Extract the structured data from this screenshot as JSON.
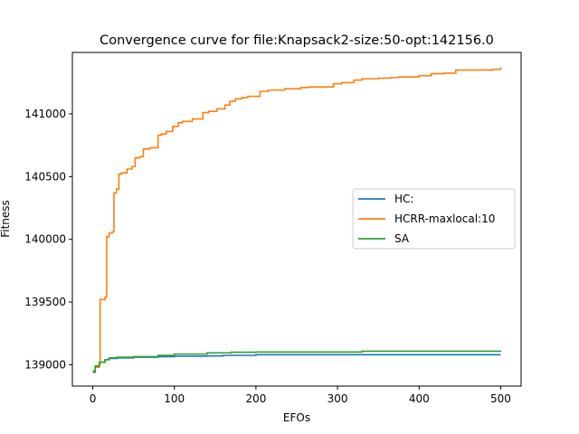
{
  "chart_data": {
    "type": "line",
    "title": "Convergence curve for file:Knapsack2-size:50-opt:142156.0",
    "xlabel": "EFOs",
    "ylabel": "Fitness",
    "xlim": [
      -25,
      525
    ],
    "ylim": [
      138830,
      141490
    ],
    "xticks": [
      0,
      100,
      200,
      300,
      400,
      500
    ],
    "yticks": [
      139000,
      139500,
      140000,
      140500,
      141000
    ],
    "grid": false,
    "legend_position": "center-right",
    "series": [
      {
        "name": "HC:",
        "color": "#1f77b4",
        "x": [
          0,
          3,
          8,
          15,
          20,
          30,
          50,
          80,
          100,
          140,
          160,
          200,
          300,
          500
        ],
        "y": [
          138940,
          138990,
          139020,
          139040,
          139050,
          139055,
          139060,
          139065,
          139068,
          139070,
          139075,
          139080,
          139080,
          139080
        ]
      },
      {
        "name": "HCRR-maxlocal:10",
        "color": "#ff7f0e",
        "x": [
          0,
          3,
          8,
          9,
          15,
          17,
          20,
          24,
          26,
          29,
          32,
          35,
          42,
          48,
          52,
          58,
          62,
          70,
          80,
          84,
          90,
          98,
          105,
          110,
          122,
          135,
          142,
          152,
          162,
          168,
          175,
          183,
          190,
          205,
          215,
          235,
          255,
          265,
          295,
          305,
          320,
          330,
          350,
          365,
          375,
          400,
          415,
          430,
          445,
          490,
          500
        ],
        "y": [
          138950,
          138980,
          139000,
          139520,
          139540,
          140020,
          140050,
          140060,
          140370,
          140400,
          140520,
          140530,
          140560,
          140580,
          140650,
          140660,
          140720,
          140730,
          140830,
          140840,
          140860,
          140900,
          140930,
          140940,
          140960,
          141010,
          141020,
          141040,
          141070,
          141100,
          141120,
          141130,
          141140,
          141180,
          141190,
          141200,
          141210,
          141215,
          141240,
          141250,
          141270,
          141280,
          141285,
          141290,
          141295,
          141305,
          141320,
          141325,
          141350,
          141355,
          141370
        ]
      },
      {
        "name": "SA",
        "color": "#2ca02c",
        "x": [
          0,
          3,
          8,
          15,
          20,
          30,
          50,
          80,
          100,
          140,
          170,
          200,
          330,
          500
        ],
        "y": [
          138950,
          138990,
          139020,
          139040,
          139055,
          139060,
          139065,
          139075,
          139085,
          139095,
          139100,
          139102,
          139108,
          139110
        ]
      }
    ]
  }
}
